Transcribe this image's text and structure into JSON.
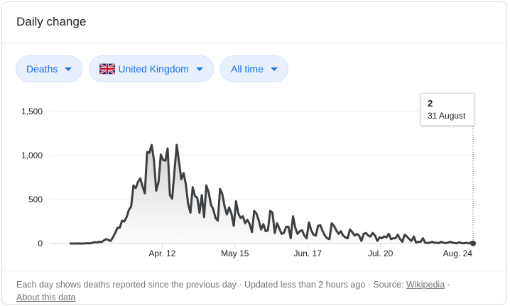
{
  "header": {
    "title": "Daily change"
  },
  "filters": {
    "metric": "Deaths",
    "country": "United Kingdom",
    "range": "All time"
  },
  "tooltip": {
    "value": "2",
    "date": "31 August"
  },
  "footer": {
    "text": "Each day shows deaths reported since the previous day · Updated less than 2 hours ago · Source:",
    "source_link": "Wikipedia",
    "separator": "·",
    "about_link": "About this data"
  },
  "colors": {
    "accent": "#1a73e8",
    "chip_bg": "#e8f0fe",
    "line": "#3c4043"
  },
  "chart_data": {
    "type": "area",
    "title": "",
    "xlabel": "",
    "ylabel": "",
    "x_ticks": [
      "Apr. 12",
      "May 15",
      "Jun. 17",
      "Jul. 20",
      "Aug. 24"
    ],
    "y_ticks": [
      "0",
      "500",
      "1,000",
      "1,500"
    ],
    "ylim": [
      0,
      1500
    ],
    "x_range": [
      "2020-03-01",
      "2020-08-31"
    ],
    "grid": true,
    "series": [
      {
        "values": [
          0,
          0,
          0,
          0,
          1,
          0,
          0,
          2,
          3,
          2,
          8,
          15,
          13,
          20,
          17,
          33,
          50,
          40,
          30,
          70,
          120,
          180,
          180,
          260,
          250,
          300,
          380,
          420,
          660,
          630,
          700,
          740,
          650,
          570,
          1040,
          1030,
          1120,
          950,
          600,
          700,
          1010,
          950,
          940,
          1080,
          550,
          510,
          820,
          1120,
          930,
          730,
          800,
          670,
          450,
          350,
          640,
          540,
          520,
          350,
          550,
          300,
          660,
          580,
          440,
          390,
          290,
          260,
          620,
          560,
          420,
          330,
          410,
          340,
          200,
          480,
          340,
          290,
          310,
          230,
          270,
          220,
          130,
          370,
          340,
          260,
          160,
          220,
          140,
          150,
          370,
          350,
          120,
          230,
          170,
          110,
          120,
          190,
          190,
          60,
          310,
          180,
          110,
          140,
          150,
          90,
          60,
          240,
          150,
          100,
          90,
          200,
          210,
          140,
          90,
          60,
          50,
          230,
          200,
          150,
          110,
          140,
          90,
          70,
          60,
          160,
          130,
          90,
          110,
          90,
          30,
          110,
          120,
          90,
          80,
          120,
          90,
          30,
          70,
          60,
          80,
          70,
          110,
          50,
          60,
          60,
          100,
          50,
          20,
          100,
          80,
          50,
          30,
          80,
          10,
          20,
          20,
          60,
          10,
          5,
          10,
          20,
          10,
          8,
          5,
          20,
          10,
          5,
          10,
          20,
          10,
          5,
          3,
          15,
          4,
          3,
          8,
          2,
          12,
          2
        ]
      }
    ]
  }
}
